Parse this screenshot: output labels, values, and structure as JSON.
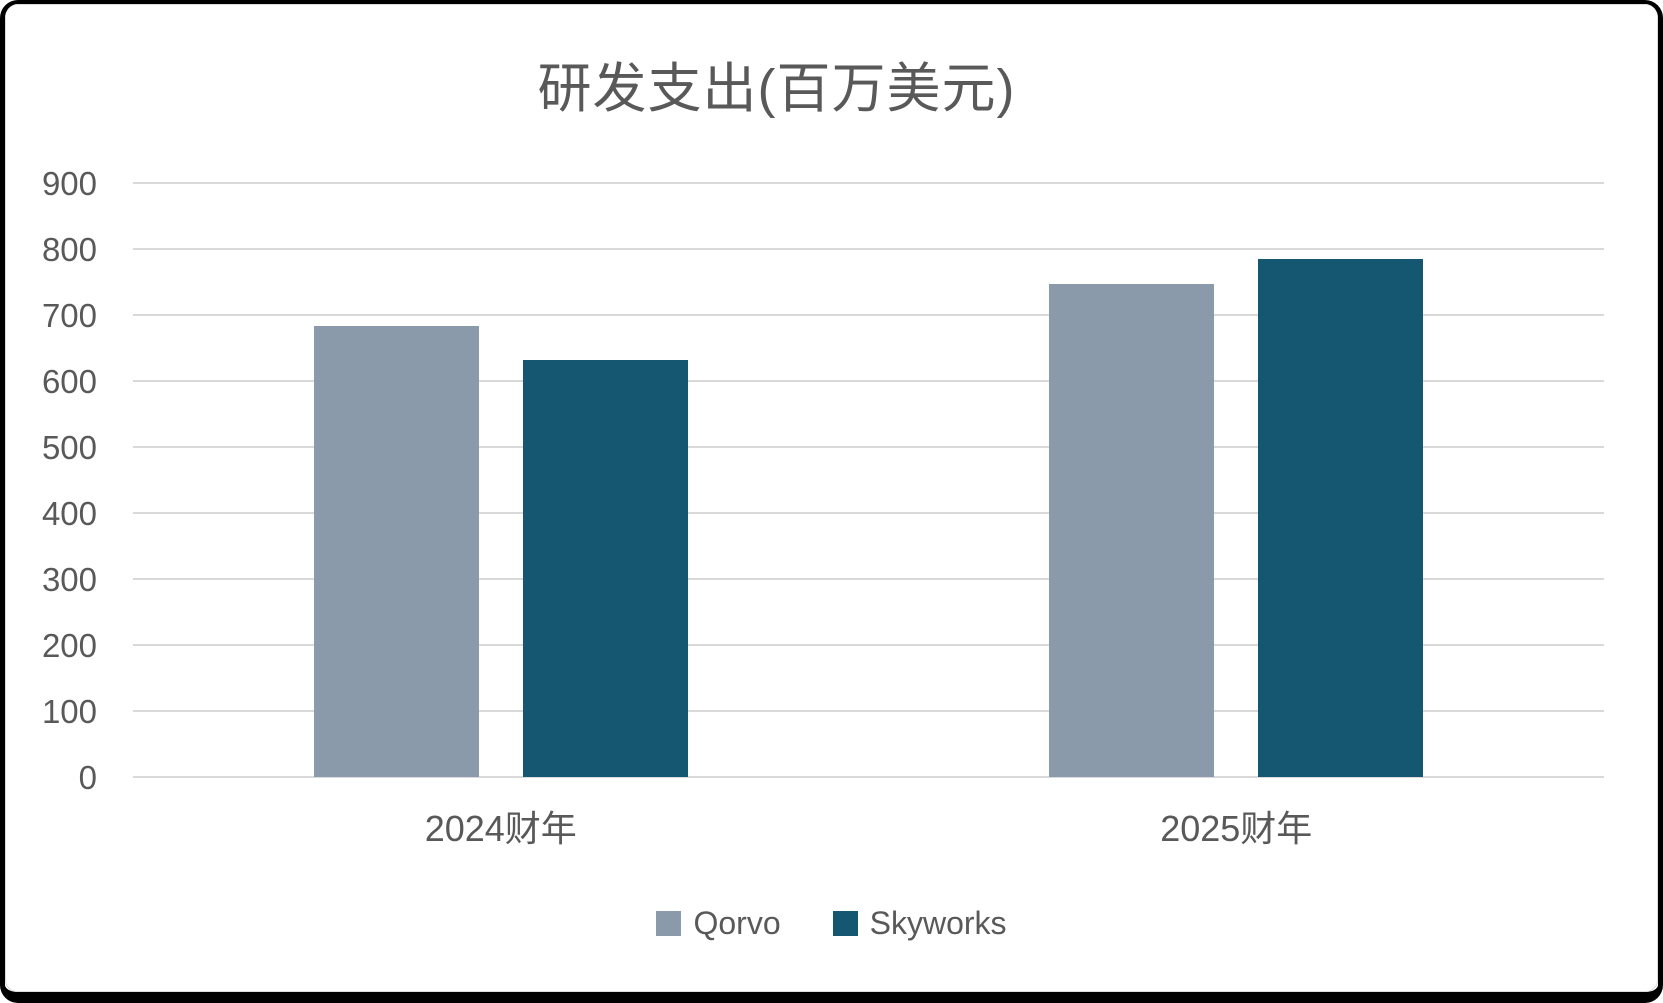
{
  "chart_data": {
    "type": "bar",
    "title": "研发支出(百万美元)",
    "categories": [
      "2024财年",
      "2025财年"
    ],
    "series": [
      {
        "name": "Qorvo",
        "color": "#8A9AAA",
        "values": [
          683,
          747
        ]
      },
      {
        "name": "Skyworks",
        "color": "#155670",
        "values": [
          632,
          785
        ]
      }
    ],
    "ylim": [
      0,
      900
    ],
    "yticks": [
      0,
      100,
      200,
      300,
      400,
      500,
      600,
      700,
      800,
      900
    ],
    "grid": true,
    "gridline_color": "#D9D9D9",
    "text_color": "#595959",
    "background_color": "#FFFFFF",
    "legend_position": "bottom"
  }
}
